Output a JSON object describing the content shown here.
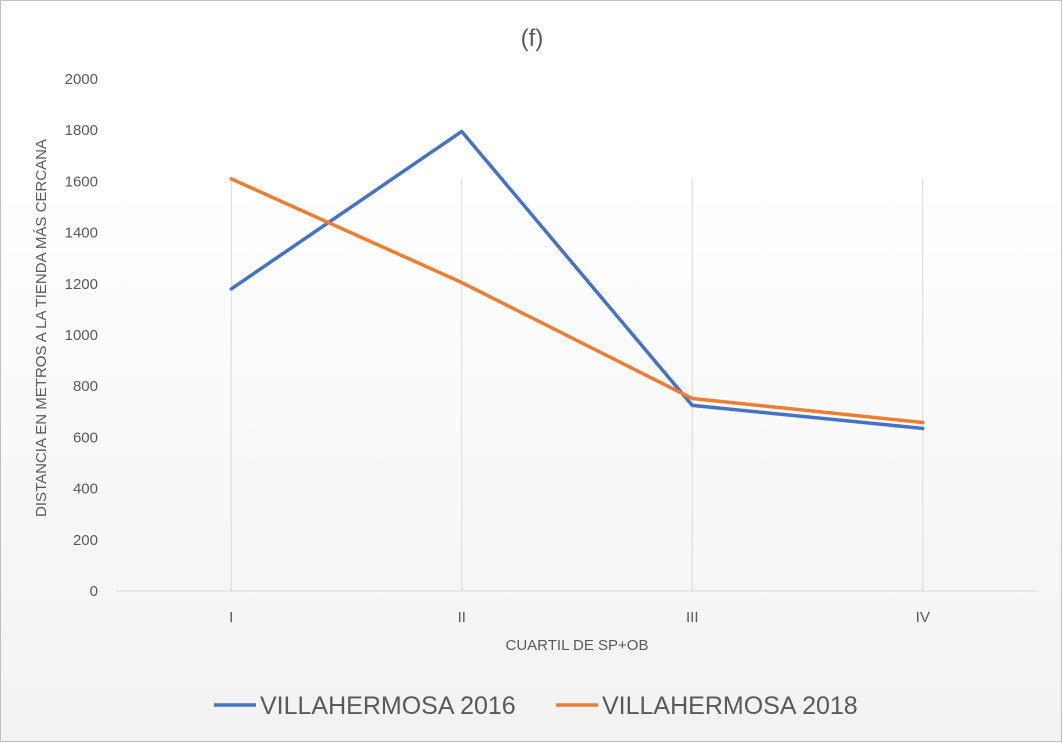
{
  "chart_data": {
    "type": "line",
    "title": "(f)",
    "xlabel": "CUARTIL DE SP+OB",
    "ylabel": "DISTANCIA EN METROS A LA TIENDA MÁS CERCANA",
    "categories": [
      "I",
      "II",
      "III",
      "IV"
    ],
    "ylim": [
      0,
      2000
    ],
    "yticks": [
      0,
      200,
      400,
      600,
      800,
      1000,
      1200,
      1400,
      1600,
      1800,
      2000
    ],
    "grid": "vertical",
    "legend": "bottom",
    "series": [
      {
        "name": "VILLAHERMOSA 2016",
        "color": "#4472c4",
        "values": [
          1180,
          1795,
          725,
          635
        ]
      },
      {
        "name": "VILLAHERMOSA 2018",
        "color": "#ed7d31",
        "values": [
          1610,
          1205,
          752,
          658
        ]
      }
    ]
  }
}
